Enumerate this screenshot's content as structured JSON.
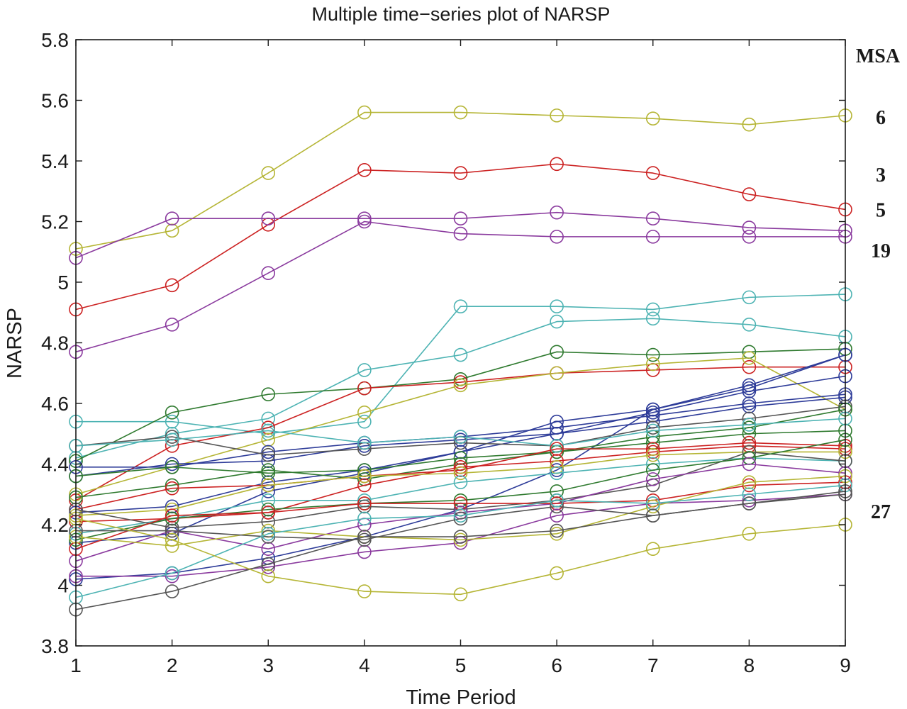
{
  "chart_data": {
    "type": "line",
    "title": "Multiple time−series plot of NARSP",
    "xlabel": "Time Period",
    "ylabel": "NARSP",
    "xlim": [
      1,
      9
    ],
    "ylim": [
      3.8,
      5.8
    ],
    "x": [
      1,
      2,
      3,
      4,
      5,
      6,
      7,
      8,
      9
    ],
    "xticks": [
      "1",
      "2",
      "3",
      "4",
      "5",
      "6",
      "7",
      "8",
      "9"
    ],
    "yticks": [
      {
        "value": 3.8,
        "label": "3.8"
      },
      {
        "value": 4.0,
        "label": "4"
      },
      {
        "value": 4.2,
        "label": "4.2"
      },
      {
        "value": 4.4,
        "label": "4.4"
      },
      {
        "value": 4.6,
        "label": "4.6"
      },
      {
        "value": 4.8,
        "label": "4.8"
      },
      {
        "value": 5.0,
        "label": "5"
      },
      {
        "value": 5.2,
        "label": "5.2"
      },
      {
        "value": 5.4,
        "label": "5.4"
      },
      {
        "value": 5.6,
        "label": "5.6"
      },
      {
        "value": 5.8,
        "label": "5.8"
      }
    ],
    "marker": "open-circle",
    "grid": false,
    "legend_title": "MSA",
    "legend_position": "right",
    "msa_labels": [
      {
        "label": "6",
        "value": 5.545
      },
      {
        "label": "3",
        "value": 5.355
      },
      {
        "label": "5",
        "value": 5.24
      },
      {
        "label": "19",
        "value": 5.105
      },
      {
        "label": "27",
        "value": 4.245
      }
    ],
    "series": [
      {
        "color": "#b5b535",
        "values": [
          5.11,
          5.17,
          5.36,
          5.56,
          5.56,
          5.55,
          5.54,
          5.52,
          5.55
        ]
      },
      {
        "color": "#cc2222",
        "values": [
          4.91,
          4.99,
          5.19,
          5.37,
          5.36,
          5.39,
          5.36,
          5.29,
          5.24
        ]
      },
      {
        "color": "#8a3a9e",
        "values": [
          5.08,
          5.21,
          5.21,
          5.21,
          5.21,
          5.23,
          5.21,
          5.18,
          5.17
        ]
      },
      {
        "color": "#8a3a9e",
        "values": [
          4.77,
          4.86,
          5.03,
          5.2,
          5.16,
          5.15,
          5.15,
          5.15,
          5.15
        ]
      },
      {
        "color": "#4db3b3",
        "values": [
          4.54,
          4.54,
          4.5,
          4.54,
          4.92,
          4.92,
          4.91,
          4.95,
          4.96
        ]
      },
      {
        "color": "#4db3b3",
        "values": [
          4.42,
          4.5,
          4.55,
          4.71,
          4.76,
          4.87,
          4.88,
          4.86,
          4.82
        ]
      },
      {
        "color": "#2f7a2f",
        "values": [
          4.41,
          4.57,
          4.63,
          4.65,
          4.68,
          4.77,
          4.76,
          4.77,
          4.78
        ]
      },
      {
        "color": "#cc2222",
        "values": [
          4.28,
          4.46,
          4.52,
          4.65,
          4.67,
          4.7,
          4.71,
          4.72,
          4.72
        ]
      },
      {
        "color": "#b5b535",
        "values": [
          4.3,
          4.39,
          4.48,
          4.57,
          4.66,
          4.7,
          4.73,
          4.75,
          4.58
        ]
      },
      {
        "color": "#2e3c99",
        "values": [
          4.14,
          4.17,
          4.31,
          4.37,
          4.44,
          4.54,
          4.58,
          4.66,
          4.76
        ]
      },
      {
        "color": "#2e3c99",
        "values": [
          4.02,
          4.04,
          4.09,
          4.16,
          4.25,
          4.38,
          4.58,
          4.65,
          4.76
        ]
      },
      {
        "color": "#2e3c99",
        "values": [
          4.24,
          4.26,
          4.34,
          4.38,
          4.44,
          4.5,
          4.57,
          4.64,
          4.69
        ]
      },
      {
        "color": "#2e3c99",
        "values": [
          4.39,
          4.39,
          4.44,
          4.47,
          4.49,
          4.52,
          4.56,
          4.6,
          4.63
        ]
      },
      {
        "color": "#2e3c99",
        "values": [
          4.36,
          4.4,
          4.41,
          4.46,
          4.48,
          4.5,
          4.54,
          4.59,
          4.62
        ]
      },
      {
        "color": "#555555",
        "values": [
          4.46,
          4.49,
          4.43,
          4.45,
          4.47,
          4.46,
          4.52,
          4.55,
          4.59
        ]
      },
      {
        "color": "#2f7a2f",
        "values": [
          4.36,
          4.39,
          4.37,
          4.38,
          4.42,
          4.44,
          4.47,
          4.5,
          4.51
        ]
      },
      {
        "color": "#2f7a2f",
        "values": [
          4.29,
          4.33,
          4.38,
          4.35,
          4.4,
          4.44,
          4.49,
          4.52,
          4.58
        ]
      },
      {
        "color": "#4db3b3",
        "values": [
          4.46,
          4.48,
          4.51,
          4.47,
          4.49,
          4.46,
          4.51,
          4.53,
          4.55
        ]
      },
      {
        "color": "#cc2222",
        "values": [
          4.25,
          4.32,
          4.33,
          4.36,
          4.38,
          4.45,
          4.45,
          4.47,
          4.46
        ]
      },
      {
        "color": "#cc2222",
        "values": [
          4.21,
          4.22,
          4.24,
          4.33,
          4.39,
          4.41,
          4.44,
          4.46,
          4.45
        ]
      },
      {
        "color": "#b5b535",
        "values": [
          4.23,
          4.25,
          4.33,
          4.36,
          4.37,
          4.39,
          4.43,
          4.44,
          4.44
        ]
      },
      {
        "color": "#4db3b3",
        "values": [
          4.17,
          4.22,
          4.28,
          4.28,
          4.34,
          4.37,
          4.4,
          4.42,
          4.41
        ]
      },
      {
        "color": "#555555",
        "values": [
          4.25,
          4.19,
          4.21,
          4.26,
          4.25,
          4.28,
          4.33,
          4.44,
          4.41
        ]
      },
      {
        "color": "#2f7a2f",
        "values": [
          4.15,
          4.22,
          4.25,
          4.27,
          4.28,
          4.31,
          4.38,
          4.42,
          4.48
        ]
      },
      {
        "color": "#8a3a9e",
        "values": [
          4.08,
          4.18,
          4.12,
          4.2,
          4.24,
          4.27,
          4.35,
          4.4,
          4.37
        ]
      },
      {
        "color": "#cc2222",
        "values": [
          4.12,
          4.23,
          4.24,
          4.27,
          4.27,
          4.27,
          4.28,
          4.33,
          4.34
        ]
      },
      {
        "color": "#8a3a9e",
        "values": [
          4.03,
          4.03,
          4.06,
          4.11,
          4.14,
          4.23,
          4.27,
          4.28,
          4.3
        ]
      },
      {
        "color": "#b5b535",
        "values": [
          4.16,
          4.13,
          4.18,
          4.16,
          4.15,
          4.17,
          4.26,
          4.34,
          4.36
        ]
      },
      {
        "color": "#555555",
        "values": [
          4.18,
          4.18,
          4.16,
          4.15,
          4.22,
          4.26,
          4.23,
          4.27,
          4.3
        ]
      },
      {
        "color": "#4db3b3",
        "values": [
          3.96,
          4.04,
          4.17,
          4.22,
          4.23,
          4.28,
          4.27,
          4.3,
          4.33
        ]
      },
      {
        "color": "#555555",
        "values": [
          3.92,
          3.98,
          4.07,
          4.16,
          4.16,
          4.18,
          4.23,
          4.27,
          4.31
        ]
      },
      {
        "color": "#b5b535",
        "values": [
          4.22,
          4.15,
          4.03,
          3.98,
          3.97,
          4.04,
          4.12,
          4.17,
          4.2
        ]
      }
    ]
  }
}
